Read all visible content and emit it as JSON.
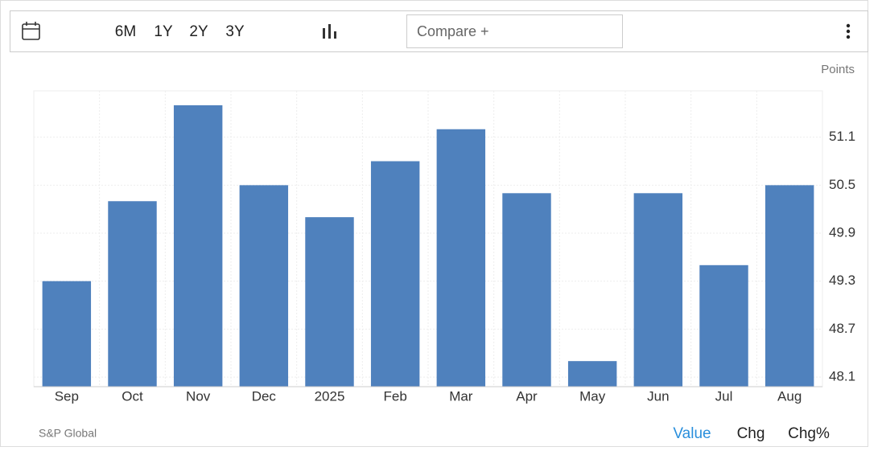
{
  "toolbar": {
    "ranges": [
      "6M",
      "1Y",
      "2Y",
      "3Y"
    ],
    "compare": "Compare +"
  },
  "chart_data": {
    "type": "bar",
    "unit": "Points",
    "source": "S&P Global",
    "categories": [
      "Sep",
      "Oct",
      "Nov",
      "Dec",
      "2025",
      "Feb",
      "Mar",
      "Apr",
      "May",
      "Jun",
      "Jul",
      "Aug"
    ],
    "values": [
      49.3,
      50.3,
      51.5,
      50.5,
      50.1,
      50.8,
      51.2,
      50.4,
      48.3,
      50.4,
      49.5,
      50.5
    ],
    "color": "#4f81bd",
    "ylim": [
      47.98,
      51.68
    ],
    "yticks": [
      48.1,
      48.7,
      49.3,
      49.9,
      50.5,
      51.1
    ],
    "grid": true
  },
  "tabs": [
    "Value",
    "Chg",
    "Chg%"
  ]
}
